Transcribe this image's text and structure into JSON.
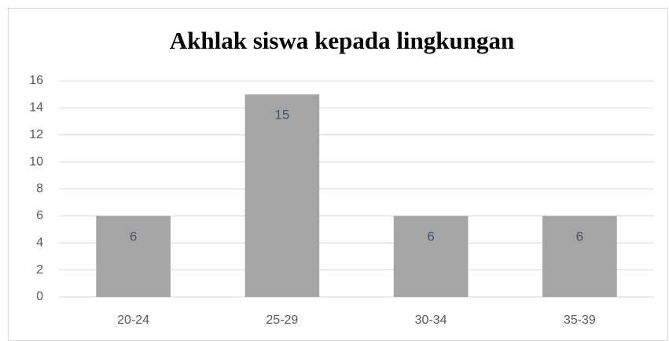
{
  "chart_data": {
    "type": "bar",
    "title": "Akhlak siswa kepada lingkungan",
    "categories": [
      "20-24",
      "25-29",
      "30-34",
      "35-39"
    ],
    "values": [
      6,
      15,
      6,
      6
    ],
    "color": "#a5a5a5",
    "ylim": [
      0,
      16
    ],
    "yticks": [
      0,
      2,
      4,
      6,
      8,
      10,
      12,
      14,
      16
    ],
    "grid": true
  }
}
